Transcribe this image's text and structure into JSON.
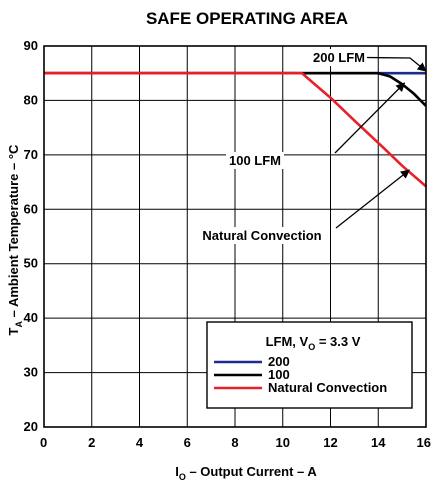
{
  "chart_data": {
    "type": "line",
    "title": "SAFE OPERATING AREA",
    "xlabel": {
      "main": "I",
      "sub": "O",
      "rest": " – Output Current – A"
    },
    "ylabel": {
      "main": "T",
      "sub": "A",
      "rest": " – Ambient Temperature – °C"
    },
    "xlim": [
      0,
      16
    ],
    "ylim": [
      20,
      90
    ],
    "xticks": [
      0,
      2,
      4,
      6,
      8,
      10,
      12,
      14,
      16
    ],
    "yticks": [
      20,
      30,
      40,
      50,
      60,
      70,
      80,
      90
    ],
    "grid": true,
    "legend": {
      "title_main": "LFM, V",
      "title_sub": "O",
      "title_rest": " = 3.3 V",
      "placement": "bottom-right",
      "entries": [
        "200",
        "100",
        "Natural Convection"
      ]
    },
    "series": [
      {
        "name": "200",
        "color": "#1f2a8c",
        "points": [
          [
            0,
            85
          ],
          [
            16,
            85
          ]
        ]
      },
      {
        "name": "100",
        "color": "#000000",
        "points": [
          [
            0,
            85
          ],
          [
            14,
            85
          ],
          [
            14.5,
            84.4
          ],
          [
            15,
            83
          ],
          [
            15.5,
            81.2
          ],
          [
            16,
            79
          ]
        ]
      },
      {
        "name": "Natural Convection",
        "color": "#e8202a",
        "points": [
          [
            0,
            85
          ],
          [
            10.8,
            85
          ],
          [
            11.2,
            83.5
          ],
          [
            12,
            80.5
          ],
          [
            13,
            76.3
          ],
          [
            14,
            72.2
          ],
          [
            15,
            68
          ],
          [
            16,
            64.2
          ]
        ]
      }
    ],
    "annotations": [
      {
        "text": "200 LFM",
        "from": [
          12.2,
          88.7
        ],
        "to": [
          16,
          85.4
        ]
      },
      {
        "text": "100 LFM",
        "from": [
          12.2,
          70.2
        ],
        "to": [
          15.1,
          83.2
        ]
      },
      {
        "text": "Natural Convection",
        "from": [
          10.8,
          53
        ],
        "to": [
          15.3,
          67.2
        ]
      }
    ]
  }
}
